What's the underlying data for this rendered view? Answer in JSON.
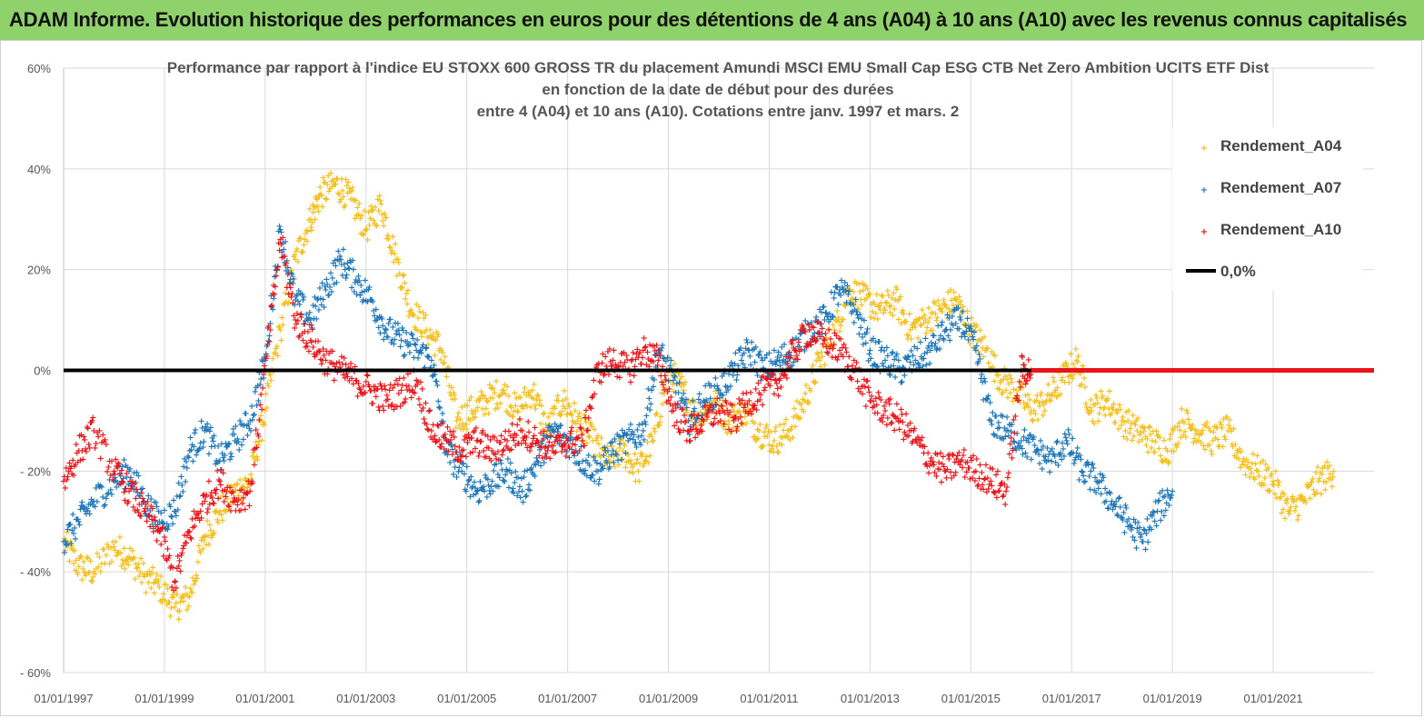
{
  "banner": {
    "text": "ADAM Informe. Evolution historique des performances en euros pour des détentions de 4 ans (A04) à 10 ans (A10) avec les revenus connus capitalisés"
  },
  "chart_data": {
    "type": "scatter",
    "title": [
      "Performance par rapport à l'indice EU STOXX 600 GROSS TR  du placement Amundi MSCI EMU Small Cap ESG CTB Net Zero Ambition UCITS ETF Dist",
      "en fonction de la date de début pour des durées",
      "entre 4 (A04) et 10 ans (A10). Cotations entre janv. 1997 et mars. 2"
    ],
    "xlim": [
      1997.0,
      2023.0
    ],
    "ylim": [
      -60,
      60
    ],
    "x_ticks": [
      1997,
      1999,
      2001,
      2003,
      2005,
      2007,
      2009,
      2011,
      2013,
      2015,
      2017,
      2019,
      2021
    ],
    "x_tick_labels": [
      "01/01/1997",
      "01/01/1999",
      "01/01/2001",
      "01/01/2003",
      "01/01/2005",
      "01/01/2007",
      "01/01/2009",
      "01/01/2011",
      "01/01/2013",
      "01/01/2015",
      "01/01/2017",
      "01/01/2019",
      "01/01/2021"
    ],
    "y_ticks": [
      60,
      40,
      20,
      0,
      -20,
      -40,
      -60
    ],
    "y_tick_labels": [
      "60%",
      "40%",
      "20%",
      "0%",
      "- 20%",
      "- 40%",
      "- 60%"
    ],
    "grid": true,
    "legend_position": "top-right",
    "series": [
      {
        "name": "Rendement_A04",
        "color": "#f2bf1d",
        "marker": "+",
        "x": [
          1997.0,
          1997.3,
          1997.6,
          1998.0,
          1998.3,
          1998.6,
          1998.9,
          1999.2,
          1999.5,
          1999.8,
          2000.1,
          2000.4,
          2000.7,
          2001.0,
          2001.3,
          2001.6,
          2001.9,
          2002.1,
          2002.4,
          2002.7,
          2003.0,
          2003.3,
          2003.6,
          2003.9,
          2004.2,
          2004.5,
          2004.8,
          2005.1,
          2005.4,
          2005.7,
          2006.0,
          2006.3,
          2006.6,
          2006.9,
          2007.2,
          2007.5,
          2007.8,
          2008.1,
          2008.4,
          2008.7,
          2009.0,
          2009.3,
          2009.6,
          2009.9,
          2010.2,
          2010.5,
          2010.8,
          2011.1,
          2011.4,
          2011.7,
          2012.0,
          2012.3,
          2012.6,
          2012.9,
          2013.2,
          2013.5,
          2013.8,
          2014.1,
          2014.4,
          2014.7,
          2015.0,
          2015.3,
          2015.6,
          2015.9,
          2016.2,
          2016.5,
          2016.8,
          2017.1,
          2017.4,
          2017.7,
          2018.0,
          2018.3,
          2018.6,
          2018.9,
          2019.2,
          2019.5,
          2019.8,
          2020.1,
          2020.4,
          2020.7,
          2021.0,
          2021.3,
          2021.6,
          2021.9,
          2022.2
        ],
        "values": [
          -34,
          -39,
          -40,
          -35,
          -37,
          -41,
          -43,
          -47,
          -45,
          -33,
          -28,
          -24,
          -22,
          -8,
          8,
          22,
          30,
          35,
          37,
          34,
          28,
          33,
          22,
          12,
          8,
          4,
          -10,
          -8,
          -6,
          -4,
          -8,
          -4,
          -12,
          -6,
          -10,
          -14,
          -18,
          -16,
          -20,
          -14,
          0,
          -4,
          -10,
          -6,
          -10,
          -8,
          -12,
          -14,
          -12,
          -6,
          2,
          8,
          16,
          14,
          12,
          14,
          8,
          10,
          12,
          14,
          8,
          4,
          -2,
          -4,
          -8,
          -6,
          -2,
          2,
          -8,
          -6,
          -10,
          -12,
          -14,
          -16,
          -10,
          -12,
          -14,
          -12,
          -18,
          -20,
          -22,
          -28,
          -26,
          -22,
          -20
        ]
      },
      {
        "name": "Rendement_A07",
        "color": "#1f77b8",
        "marker": "+",
        "x": [
          1997.0,
          1997.3,
          1997.6,
          1998.0,
          1998.3,
          1998.6,
          1998.9,
          1999.2,
          1999.5,
          1999.8,
          2000.1,
          2000.4,
          2000.7,
          2001.0,
          2001.3,
          2001.6,
          2001.9,
          2002.2,
          2002.5,
          2002.8,
          2003.1,
          2003.4,
          2003.7,
          2004.0,
          2004.3,
          2004.6,
          2004.9,
          2005.2,
          2005.5,
          2005.8,
          2006.1,
          2006.4,
          2006.7,
          2007.0,
          2007.3,
          2007.6,
          2007.9,
          2008.2,
          2008.5,
          2008.8,
          2009.1,
          2009.4,
          2009.7,
          2010.0,
          2010.3,
          2010.6,
          2010.9,
          2011.2,
          2011.5,
          2011.8,
          2012.1,
          2012.4,
          2012.7,
          2013.0,
          2013.3,
          2013.6,
          2013.9,
          2014.2,
          2014.5,
          2014.8,
          2015.1,
          2015.4,
          2015.7,
          2016.0,
          2016.3,
          2016.6,
          2016.9,
          2017.2,
          2017.5,
          2017.8,
          2018.1,
          2018.4,
          2018.7,
          2019.0
        ],
        "values": [
          -34,
          -30,
          -26,
          -22,
          -20,
          -26,
          -30,
          -28,
          -16,
          -12,
          -18,
          -14,
          -10,
          2,
          28,
          14,
          10,
          16,
          22,
          18,
          14,
          8,
          6,
          4,
          2,
          -16,
          -20,
          -24,
          -22,
          -20,
          -24,
          -18,
          -12,
          -14,
          -18,
          -20,
          -16,
          -14,
          -12,
          4,
          -2,
          -10,
          -6,
          -4,
          0,
          4,
          0,
          2,
          4,
          8,
          10,
          16,
          12,
          4,
          2,
          0,
          2,
          4,
          8,
          10,
          4,
          -10,
          -12,
          -14,
          -16,
          -18,
          -14,
          -20,
          -22,
          -26,
          -30,
          -34,
          -28,
          -24
        ]
      },
      {
        "name": "Rendement_A10",
        "color": "#e8161b",
        "marker": "+",
        "x": [
          1997.0,
          1997.3,
          1997.6,
          1998.0,
          1998.3,
          1998.6,
          1998.9,
          1999.2,
          1999.5,
          1999.8,
          2000.1,
          2000.4,
          2000.7,
          2001.0,
          2001.3,
          2001.6,
          2001.9,
          2002.2,
          2002.5,
          2002.8,
          2003.1,
          2003.4,
          2003.7,
          2004.0,
          2004.3,
          2004.6,
          2004.9,
          2005.2,
          2005.5,
          2005.8,
          2006.1,
          2006.4,
          2006.7,
          2007.0,
          2007.3,
          2007.6,
          2007.9,
          2008.2,
          2008.5,
          2008.8,
          2009.1,
          2009.4,
          2009.7,
          2010.0,
          2010.3,
          2010.6,
          2010.9,
          2011.2,
          2011.5,
          2011.8,
          2012.1,
          2012.4,
          2012.7,
          2013.0,
          2013.3,
          2013.6,
          2013.9,
          2014.2,
          2014.5,
          2014.8,
          2015.1,
          2015.4,
          2015.7,
          2016.0,
          2016.2
        ],
        "values": [
          -22,
          -16,
          -12,
          -20,
          -24,
          -28,
          -32,
          -42,
          -32,
          -26,
          -22,
          -26,
          -24,
          0,
          26,
          10,
          6,
          2,
          0,
          -2,
          -4,
          -6,
          -4,
          -2,
          -12,
          -14,
          -16,
          -14,
          -16,
          -14,
          -12,
          -14,
          -16,
          -14,
          -14,
          0,
          2,
          0,
          4,
          2,
          -8,
          -12,
          -10,
          -8,
          -10,
          -6,
          -4,
          -2,
          4,
          8,
          6,
          4,
          0,
          -6,
          -8,
          -10,
          -14,
          -18,
          -20,
          -18,
          -20,
          -22,
          -24,
          0,
          0
        ]
      },
      {
        "name": "0,0%",
        "color": "#000000",
        "marker": "line",
        "x": [
          1997.0,
          2016.2
        ],
        "values": [
          0,
          0
        ]
      }
    ],
    "flat_tail": {
      "series": "Rendement_A10",
      "color": "#e8161b",
      "x_start": 2016.2,
      "x_end": 2023.0,
      "value": 0
    }
  }
}
